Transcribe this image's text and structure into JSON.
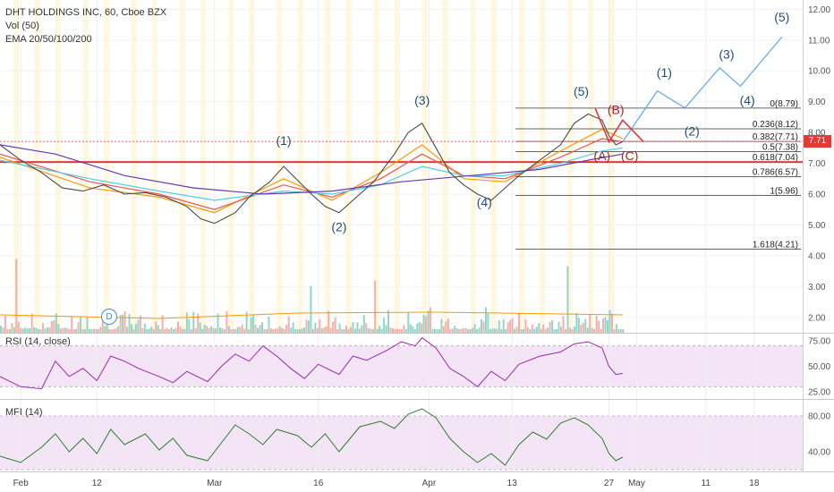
{
  "header": {
    "symbol_line": "DHT HOLDINGS INC, 60, Cboe BZX",
    "volume_label": "Vol (50)",
    "ema_label": "EMA 20/50/100/200"
  },
  "price_badge": "7.71",
  "indicators": {
    "rsi_label": "RSI (14, close)",
    "mfi_label": "MFI (14)"
  },
  "event_badge": "D",
  "chart_data": [
    {
      "type": "line",
      "title": "DHT HOLDINGS INC, 60, Cboe BZX",
      "y_ticks": [
        "12.00",
        "11.00",
        "10.00",
        "9.00",
        "8.00",
        "7.00",
        "6.00",
        "5.00",
        "4.00",
        "3.00",
        "2.00"
      ],
      "ylim": [
        1.5,
        12.3
      ],
      "x_ticks": [
        {
          "label": "Feb",
          "day": 0
        },
        {
          "label": "12",
          "day": 11
        },
        {
          "label": "Mar",
          "day": 28
        },
        {
          "label": "16",
          "day": 43
        },
        {
          "label": "Apr",
          "day": 59
        },
        {
          "label": "13",
          "day": 71
        },
        {
          "label": "27",
          "day": 85
        },
        {
          "label": "May",
          "day": 89
        },
        {
          "label": "11",
          "day": 99
        },
        {
          "label": "18",
          "day": 106
        }
      ],
      "xlim": [
        -3,
        113
      ],
      "last_price": 7.71,
      "price_path": [
        [
          -3,
          7.6
        ],
        [
          0,
          7.1
        ],
        [
          3,
          6.7
        ],
        [
          6,
          6.2
        ],
        [
          9,
          6.1
        ],
        [
          12,
          6.3
        ],
        [
          15,
          6.0
        ],
        [
          18,
          6.05
        ],
        [
          21,
          5.9
        ],
        [
          24,
          5.6
        ],
        [
          26,
          5.2
        ],
        [
          28,
          5.05
        ],
        [
          31,
          5.4
        ],
        [
          33,
          5.9
        ],
        [
          36,
          6.4
        ],
        [
          38,
          6.9
        ],
        [
          40,
          6.45
        ],
        [
          42,
          6.0
        ],
        [
          44,
          5.6
        ],
        [
          46,
          5.4
        ],
        [
          48,
          5.8
        ],
        [
          51,
          6.4
        ],
        [
          54,
          7.3
        ],
        [
          56,
          8.0
        ],
        [
          58,
          8.3
        ],
        [
          60,
          7.5
        ],
        [
          62,
          6.7
        ],
        [
          64,
          6.3
        ],
        [
          66,
          6.0
        ],
        [
          68,
          5.8
        ],
        [
          70,
          6.2
        ],
        [
          72,
          6.6
        ],
        [
          75,
          7.1
        ],
        [
          78,
          7.6
        ],
        [
          80,
          8.3
        ],
        [
          82,
          8.6
        ],
        [
          84,
          8.4
        ],
        [
          85,
          7.9
        ],
        [
          86,
          7.6
        ],
        [
          87,
          7.7
        ]
      ],
      "ema_series": [
        {
          "color": "#ff9800",
          "points": [
            [
              -3,
              7.2
            ],
            [
              10,
              6.2
            ],
            [
              20,
              5.9
            ],
            [
              28,
              5.4
            ],
            [
              38,
              6.5
            ],
            [
              45,
              5.8
            ],
            [
              52,
              6.7
            ],
            [
              58,
              7.6
            ],
            [
              64,
              6.5
            ],
            [
              70,
              6.4
            ],
            [
              78,
              7.4
            ],
            [
              84,
              8.1
            ],
            [
              87,
              7.8
            ]
          ]
        },
        {
          "color": "#ef5350",
          "points": [
            [
              -3,
              7.3
            ],
            [
              10,
              6.4
            ],
            [
              20,
              6.0
            ],
            [
              28,
              5.5
            ],
            [
              38,
              6.3
            ],
            [
              45,
              5.9
            ],
            [
              52,
              6.5
            ],
            [
              58,
              7.3
            ],
            [
              64,
              6.6
            ],
            [
              70,
              6.5
            ],
            [
              78,
              7.2
            ],
            [
              84,
              7.8
            ],
            [
              87,
              7.7
            ]
          ]
        },
        {
          "color": "#4dd0e1",
          "points": [
            [
              -3,
              7.1
            ],
            [
              10,
              6.5
            ],
            [
              20,
              6.1
            ],
            [
              28,
              5.8
            ],
            [
              38,
              6.1
            ],
            [
              45,
              6.0
            ],
            [
              52,
              6.3
            ],
            [
              58,
              6.9
            ],
            [
              64,
              6.6
            ],
            [
              70,
              6.6
            ],
            [
              78,
              7.0
            ],
            [
              84,
              7.4
            ],
            [
              87,
              7.5
            ]
          ]
        },
        {
          "color": "#673ab7",
          "points": [
            [
              -3,
              7.6
            ],
            [
              5,
              7.3
            ],
            [
              15,
              6.6
            ],
            [
              25,
              6.2
            ],
            [
              35,
              6.0
            ],
            [
              45,
              6.1
            ],
            [
              55,
              6.4
            ],
            [
              65,
              6.6
            ],
            [
              75,
              6.8
            ],
            [
              82,
              7.1
            ],
            [
              87,
              7.3
            ]
          ]
        }
      ],
      "horizontal_levels": [
        {
          "price": 7.04,
          "color": "#e53935"
        },
        {
          "price": 7.71,
          "color": "#e53935",
          "style": "dotted"
        }
      ],
      "fib_levels": [
        {
          "price": 8.79,
          "label": "0(8.79)"
        },
        {
          "price": 8.12,
          "label": "0.236(8.12)"
        },
        {
          "price": 7.71,
          "label": "0.382(7.71)"
        },
        {
          "price": 7.38,
          "label": "0.5(7.38)"
        },
        {
          "price": 7.04,
          "label": "0.618(7.04)"
        },
        {
          "price": 6.57,
          "label": "0.786(6.57)"
        },
        {
          "price": 5.96,
          "label": "1(5.96)"
        },
        {
          "price": 4.21,
          "label": "1.618(4.21)"
        }
      ],
      "wave_labels_blue": [
        {
          "label": "(1)",
          "day": 38,
          "price": 7.6
        },
        {
          "label": "(2)",
          "day": 46,
          "price": 4.8
        },
        {
          "label": "(3)",
          "day": 58,
          "price": 8.9
        },
        {
          "label": "(4)",
          "day": 67,
          "price": 5.6
        },
        {
          "label": "(5)",
          "day": 81,
          "price": 9.2
        },
        {
          "label": "(1)",
          "day": 93,
          "price": 9.8
        },
        {
          "label": "(2)",
          "day": 97,
          "price": 7.9
        },
        {
          "label": "(3)",
          "day": 102,
          "price": 10.4
        },
        {
          "label": "(4)",
          "day": 105,
          "price": 8.9
        },
        {
          "label": "(5)",
          "day": 110,
          "price": 11.6
        }
      ],
      "wave_labels_red": [
        {
          "label": "(A)",
          "day": 84,
          "price": 7.1
        },
        {
          "label": "(B)",
          "day": 86,
          "price": 8.6
        },
        {
          "label": "(C)",
          "day": 88,
          "price": 7.1
        }
      ],
      "projection_blue": [
        [
          87,
          7.7
        ],
        [
          92,
          9.35
        ],
        [
          96,
          8.8
        ],
        [
          101,
          10.1
        ],
        [
          104,
          9.5
        ],
        [
          110,
          11.1
        ]
      ],
      "projection_red": [
        [
          83,
          8.8
        ],
        [
          85,
          7.7
        ],
        [
          87,
          8.4
        ],
        [
          90,
          7.7
        ]
      ]
    },
    {
      "type": "line",
      "title": "RSI (14, close)",
      "y_ticks": [
        "75.00",
        "50.00",
        "25.00"
      ],
      "ylim": [
        18,
        82
      ],
      "band": [
        30,
        70
      ],
      "series": [
        {
          "color": "#9c27b0",
          "points": [
            [
              -3,
              40
            ],
            [
              0,
              30
            ],
            [
              3,
              28
            ],
            [
              5,
              55
            ],
            [
              7,
              40
            ],
            [
              9,
              48
            ],
            [
              11,
              36
            ],
            [
              13,
              60
            ],
            [
              15,
              55
            ],
            [
              17,
              48
            ],
            [
              20,
              40
            ],
            [
              22,
              34
            ],
            [
              24,
              45
            ],
            [
              27,
              35
            ],
            [
              29,
              50
            ],
            [
              31,
              62
            ],
            [
              33,
              55
            ],
            [
              35,
              70
            ],
            [
              37,
              60
            ],
            [
              39,
              48
            ],
            [
              41,
              38
            ],
            [
              43,
              52
            ],
            [
              46,
              42
            ],
            [
              48,
              60
            ],
            [
              50,
              56
            ],
            [
              53,
              66
            ],
            [
              55,
              74
            ],
            [
              57,
              70
            ],
            [
              58,
              78
            ],
            [
              60,
              68
            ],
            [
              62,
              48
            ],
            [
              64,
              40
            ],
            [
              66,
              30
            ],
            [
              68,
              45
            ],
            [
              70,
              36
            ],
            [
              72,
              52
            ],
            [
              75,
              60
            ],
            [
              78,
              64
            ],
            [
              80,
              72
            ],
            [
              82,
              74
            ],
            [
              84,
              68
            ],
            [
              85,
              50
            ],
            [
              86,
              42
            ],
            [
              87,
              43
            ]
          ]
        }
      ]
    },
    {
      "type": "line",
      "title": "MFI (14)",
      "y_ticks": [
        "80.00",
        "40.00"
      ],
      "ylim": [
        18,
        98
      ],
      "band": [
        20,
        80
      ],
      "series": [
        {
          "color": "#2e7d32",
          "points": [
            [
              -3,
              35
            ],
            [
              0,
              28
            ],
            [
              3,
              45
            ],
            [
              5,
              60
            ],
            [
              7,
              40
            ],
            [
              9,
              55
            ],
            [
              11,
              38
            ],
            [
              13,
              65
            ],
            [
              15,
              48
            ],
            [
              18,
              60
            ],
            [
              20,
              42
            ],
            [
              22,
              55
            ],
            [
              24,
              36
            ],
            [
              27,
              30
            ],
            [
              29,
              50
            ],
            [
              31,
              70
            ],
            [
              33,
              60
            ],
            [
              35,
              48
            ],
            [
              37,
              65
            ],
            [
              40,
              58
            ],
            [
              42,
              45
            ],
            [
              44,
              60
            ],
            [
              46,
              40
            ],
            [
              49,
              68
            ],
            [
              52,
              74
            ],
            [
              54,
              66
            ],
            [
              56,
              82
            ],
            [
              58,
              88
            ],
            [
              60,
              78
            ],
            [
              62,
              55
            ],
            [
              64,
              40
            ],
            [
              66,
              28
            ],
            [
              68,
              38
            ],
            [
              70,
              25
            ],
            [
              72,
              48
            ],
            [
              74,
              62
            ],
            [
              76,
              54
            ],
            [
              78,
              72
            ],
            [
              80,
              78
            ],
            [
              82,
              70
            ],
            [
              84,
              55
            ],
            [
              85,
              38
            ],
            [
              86,
              30
            ],
            [
              87,
              34
            ]
          ]
        }
      ]
    }
  ]
}
